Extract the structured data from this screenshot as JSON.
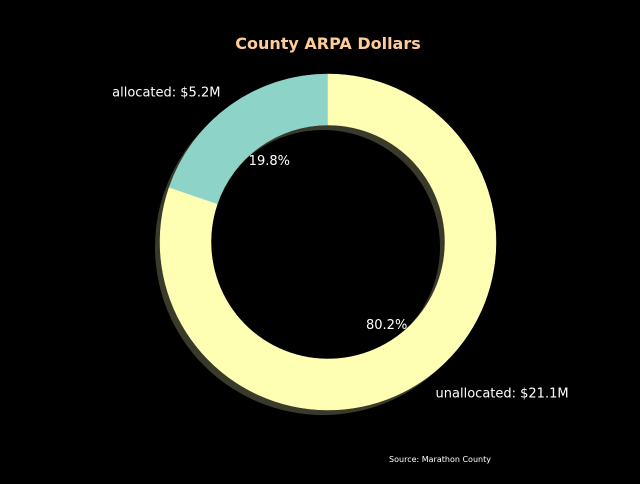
{
  "chart_data": {
    "type": "pie",
    "style": "donut",
    "title": "County ARPA Dollars",
    "categories": [
      "allocated",
      "unallocated"
    ],
    "labels": [
      "allocated: $5.2M",
      "unallocated: $21.1M"
    ],
    "values": [
      5.2,
      21.1
    ],
    "percent_labels": [
      "19.8%",
      "80.2%"
    ],
    "colors": [
      "#8dd3c7",
      "#ffffb3"
    ],
    "start_angle": 90,
    "direction": "counterclockwise",
    "shadow": true,
    "source_note": "Source: Marathon County"
  },
  "colors": {
    "background": "#000000",
    "title": "#ffcc99",
    "text": "#ffffff",
    "shadow": "#3a3a2a"
  }
}
